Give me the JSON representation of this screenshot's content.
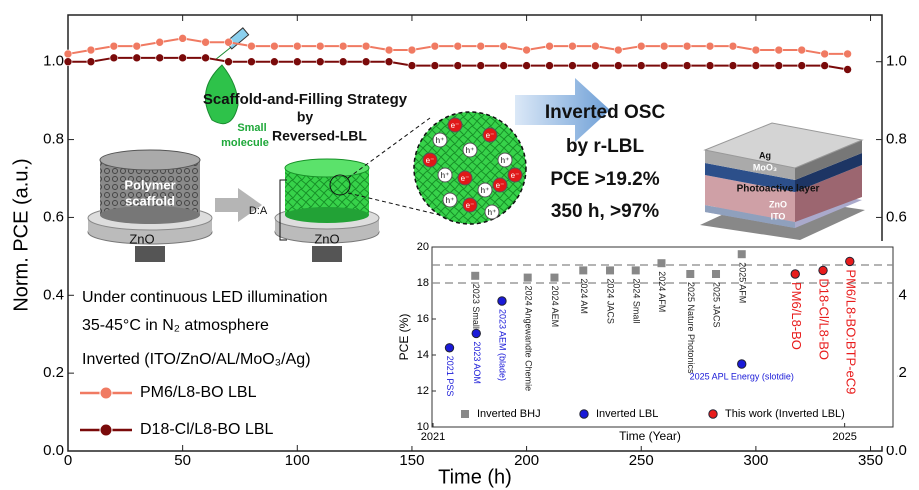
{
  "chart_data": [
    {
      "type": "line",
      "x_label": "Time (h)",
      "y_label": "Norm. PCE (a.u.)",
      "xlim": [
        0,
        355
      ],
      "xticks": [
        0,
        50,
        100,
        150,
        200,
        250,
        300,
        350
      ],
      "ylim": [
        0,
        1.12
      ],
      "yticks": [
        {
          "value": 0,
          "label": "0.0"
        },
        {
          "value": 0.2,
          "label": "0.2"
        },
        {
          "value": 0.4,
          "label": "0.4"
        },
        {
          "value": 0.6,
          "label": "0.6"
        },
        {
          "value": 0.8,
          "label": "0.8"
        },
        {
          "value": 1.0,
          "label": "1.0"
        }
      ],
      "x": [
        0,
        10,
        20,
        30,
        40,
        50,
        60,
        70,
        80,
        90,
        100,
        110,
        120,
        130,
        140,
        150,
        160,
        170,
        180,
        190,
        200,
        210,
        220,
        230,
        240,
        250,
        260,
        270,
        280,
        290,
        300,
        310,
        320,
        330,
        340
      ],
      "series": [
        {
          "name": "PM6/L8-BO LBL",
          "color": "#f07a62",
          "values": [
            1.02,
            1.03,
            1.04,
            1.04,
            1.05,
            1.06,
            1.05,
            1.05,
            1.04,
            1.04,
            1.04,
            1.04,
            1.04,
            1.04,
            1.03,
            1.03,
            1.04,
            1.04,
            1.04,
            1.04,
            1.03,
            1.04,
            1.04,
            1.04,
            1.03,
            1.04,
            1.04,
            1.04,
            1.04,
            1.04,
            1.03,
            1.03,
            1.03,
            1.02,
            1.02
          ]
        },
        {
          "name": "D18-Cl/L8-BO LBL",
          "color": "#7a0a0a",
          "values": [
            1.0,
            1.0,
            1.01,
            1.01,
            1.01,
            1.01,
            1.01,
            1.0,
            1.0,
            1.0,
            1.0,
            1.0,
            1.0,
            1.0,
            1.0,
            0.99,
            0.99,
            0.99,
            0.99,
            0.99,
            0.99,
            0.99,
            0.99,
            0.99,
            0.99,
            0.99,
            0.99,
            0.99,
            0.99,
            0.99,
            0.99,
            0.99,
            0.99,
            0.99,
            0.98
          ]
        }
      ],
      "legend_title": "Inverted (ITO/ZnO/AL/MoO₃/Ag)",
      "annotations": [
        "Under continuous LED illumination",
        "35-45°C in N₂ atmosphere"
      ]
    },
    {
      "type": "scatter",
      "x_label": "Time (Year)",
      "y_label": "PCE (%)",
      "xlim": [
        2020.99,
        2025.47
      ],
      "xticks": [
        2021,
        2025
      ],
      "ylim": [
        10,
        20
      ],
      "yticks": [
        10,
        12,
        14,
        16,
        18,
        20
      ],
      "reference_lines": [
        18,
        19
      ],
      "series": [
        {
          "name": "Inverted BHJ",
          "color": "#888888",
          "marker": "square",
          "x": [
            2021.41,
            2021.92,
            2022.18,
            2022.46,
            2022.72,
            2022.97,
            2023.22,
            2023.5,
            2023.75,
            2024.0
          ],
          "values": [
            18.4,
            18.3,
            18.3,
            18.7,
            18.7,
            18.7,
            19.1,
            18.5,
            18.5,
            19.6
          ],
          "point_labels": [
            "2023 Small",
            "2024 Angewandte Chemie",
            "2024 AEM",
            "2024 AM",
            "2024 JACS",
            "2024 Small",
            "2024 AFM",
            "2025 Nature Photonics",
            "2025 JACS",
            "2025 AFM"
          ]
        },
        {
          "name": "Inverted LBL",
          "color": "#1a1ad8",
          "marker": "circle",
          "x": [
            2021.16,
            2021.42,
            2021.67,
            2024.0
          ],
          "values": [
            14.4,
            15.2,
            17.0,
            13.5
          ],
          "point_labels": [
            "2021 PSS",
            "2023 AOM",
            "2023 AEM (blade)",
            "2025 APL Energy (slotdie)"
          ]
        },
        {
          "name": "This work (Inverted LBL)",
          "color": "#e81c1c",
          "marker": "circle",
          "x": [
            2024.52,
            2024.79,
            2025.05
          ],
          "values": [
            18.5,
            18.7,
            19.2
          ],
          "point_labels": [
            "PM6/L8-BO",
            "D18-Cl/L8-BO",
            "PM6/L8-BO:BTP-eC9"
          ]
        }
      ]
    }
  ],
  "diagram": {
    "strategy": [
      "Scaffold-and-Filling Strategy",
      "by",
      "Reversed-LBL"
    ],
    "small_molecule": [
      "Small",
      "molecule"
    ],
    "scaffold": [
      "Polymer",
      "scaffold"
    ],
    "substrates": [
      "ZnO",
      "ZnO"
    ],
    "da_label": "D:A",
    "particles": [
      "h⁺",
      "e⁻",
      "h⁺",
      "e⁻",
      "h⁺",
      "h⁺",
      "e⁻",
      "h⁺",
      "e⁻",
      "h⁺",
      "e⁻",
      "e⁻",
      "h⁺",
      "e⁻"
    ],
    "summary": [
      "Inverted OSC",
      "by r-LBL",
      "PCE >19.2%",
      "350 h, >97%"
    ],
    "layers": [
      "Ag",
      "MoO₃",
      "Photoactive layer",
      "ZnO",
      "ITO"
    ]
  }
}
